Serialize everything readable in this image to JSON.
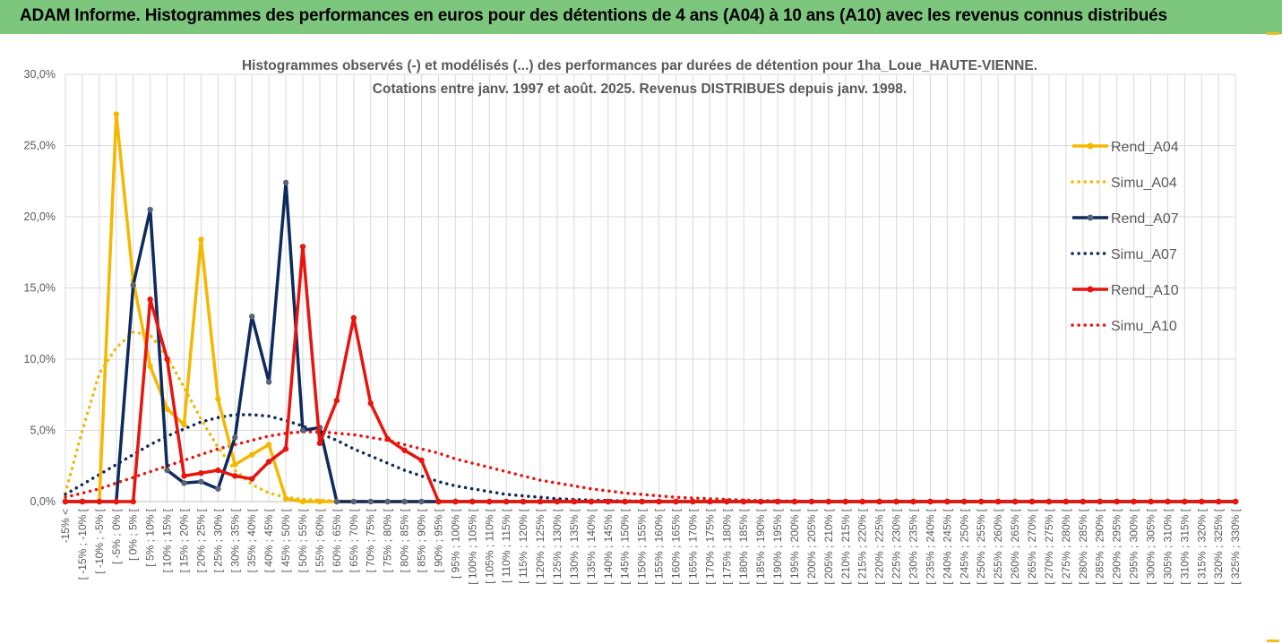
{
  "banner": {
    "title": "ADAM Informe. Histogrammes des performances en euros pour des détentions de 4 ans (A04) à 10 ans (A10) avec les revenus connus distribués"
  },
  "colors": {
    "banner": "#7dc67d",
    "a04": "#f5b800",
    "a07": "#0f2a5c",
    "a10": "#e8150f",
    "grid": "#d9d9d9"
  },
  "chart_data": {
    "type": "line",
    "title": "Histogrammes observés (-) et modélisés (...) des performances par durées de détention pour 1ha_Loue_HAUTE-VIENNE.",
    "subtitle": "Cotations entre janv. 1997 et août. 2025. Revenus DISTRIBUES depuis janv. 1998.",
    "ylim": [
      0,
      30
    ],
    "yticks": [
      "0,0%",
      "5,0%",
      "10,0%",
      "15,0%",
      "20,0%",
      "25,0%",
      "30,0%"
    ],
    "grid": true,
    "legend_position": "right",
    "categories": [
      "-15% <",
      "[ -15% ; -10% [",
      "[ -10% ; -5% [",
      "[ -5% ; 0% [",
      "[ 0% ; 5% [",
      "[ 5% ; 10% [",
      "[ 10% ; 15% [",
      "[ 15% ; 20% [",
      "[ 20% ; 25% [",
      "[ 25% ; 30% [",
      "[ 30% ; 35% [",
      "[ 35% ; 40% [",
      "[ 40% ; 45% [",
      "[ 45% ; 50% [",
      "[ 50% ; 55% [",
      "[ 55% ; 60% [",
      "[ 60% ; 65% [",
      "[ 65% ; 70% [",
      "[ 70% ; 75% [",
      "[ 75% ; 80% [",
      "[ 80% ; 85% [",
      "[ 85% ; 90% [",
      "[ 90% ; 95% [",
      "[ 95% ; 100% [",
      "[ 100% ; 105% [",
      "[ 105% ; 110% [",
      "[ 110% ; 115% [",
      "[ 115% ; 120% [",
      "[ 120% ; 125% [",
      "[ 125% ; 130% [",
      "[ 130% ; 135% [",
      "[ 135% ; 140% [",
      "[ 140% ; 145% [",
      "[ 145% ; 150% [",
      "[ 150% ; 155% [",
      "[ 155% ; 160% [",
      "[ 160% ; 165% [",
      "[ 165% ; 170% [",
      "[ 170% ; 175% [",
      "[ 175% ; 180% [",
      "[ 180% ; 185% [",
      "[ 185% ; 190% [",
      "[ 190% ; 195% [",
      "[ 195% ; 200% [",
      "[ 200% ; 205% [",
      "[ 205% ; 210% [",
      "[ 210% ; 215% [",
      "[ 215% ; 220% [",
      "[ 220% ; 225% [",
      "[ 225% ; 230% [",
      "[ 230% ; 235% [",
      "[ 235% ; 240% [",
      "[ 240% ; 245% [",
      "[ 245% ; 250% [",
      "[ 250% ; 255% [",
      "[ 255% ; 260% [",
      "[ 260% ; 265% [",
      "[ 265% ; 270% [",
      "[ 270% ; 275% [",
      "[ 275% ; 280% [",
      "[ 280% ; 285% [",
      "[ 285% ; 290% [",
      "[ 290% ; 295% [",
      "[ 295% ; 300% [",
      "[ 300% ; 305% [",
      "[ 305% ; 310% [",
      "[ 310% ; 315% [",
      "[ 315% ; 320% [",
      "[ 320% ; 325% [",
      "[ 325% ; 330% ["
    ],
    "series": [
      {
        "name": "Rend_A04",
        "style": "solid",
        "color": "#f5b800",
        "values": [
          0,
          0,
          0,
          27.2,
          15.5,
          9.5,
          6.5,
          5.4,
          18.4,
          7.2,
          2.6,
          3.3,
          4.0,
          0.2,
          0,
          0,
          0,
          0,
          0,
          0,
          0,
          0,
          0,
          0,
          0,
          0,
          0,
          0,
          0,
          0,
          0,
          0,
          0,
          0,
          0,
          0,
          0,
          0,
          0,
          0,
          0,
          0,
          0,
          0,
          0,
          0,
          0,
          0,
          0,
          0,
          0,
          0,
          0,
          0,
          0,
          0,
          0,
          0,
          0,
          0,
          0,
          0,
          0,
          0,
          0,
          0,
          0,
          0,
          0,
          0
        ]
      },
      {
        "name": "Simu_A04",
        "style": "dotted",
        "color": "#f5b800",
        "values": [
          0.6,
          5.0,
          9.0,
          10.8,
          11.9,
          11.7,
          10.2,
          8.0,
          5.8,
          3.8,
          2.2,
          1.2,
          0.6,
          0.3,
          0.15,
          0.1,
          0.05,
          0,
          0,
          0,
          0,
          0,
          0,
          0,
          0,
          0,
          0,
          0,
          0,
          0,
          0,
          0,
          0,
          0,
          0,
          0,
          0,
          0,
          0,
          0,
          0,
          0,
          0,
          0,
          0,
          0,
          0,
          0,
          0,
          0,
          0,
          0,
          0,
          0,
          0,
          0,
          0,
          0,
          0,
          0,
          0,
          0,
          0,
          0,
          0,
          0,
          0,
          0,
          0,
          0
        ]
      },
      {
        "name": "Rend_A07",
        "style": "solid",
        "color": "#0f2a5c",
        "values": [
          0,
          0,
          0,
          0,
          15.2,
          20.5,
          2.2,
          1.3,
          1.4,
          0.9,
          4.5,
          13.0,
          8.4,
          22.4,
          5.0,
          5.2,
          0,
          0,
          0,
          0,
          0,
          0,
          0,
          0,
          0,
          0,
          0,
          0,
          0,
          0,
          0,
          0,
          0,
          0,
          0,
          0,
          0,
          0,
          0,
          0,
          0,
          0,
          0,
          0,
          0,
          0,
          0,
          0,
          0,
          0,
          0,
          0,
          0,
          0,
          0,
          0,
          0,
          0,
          0,
          0,
          0,
          0,
          0,
          0,
          0,
          0,
          0,
          0,
          0,
          0
        ]
      },
      {
        "name": "Simu_A07",
        "style": "dotted",
        "color": "#0f2a5c",
        "values": [
          0.5,
          1.2,
          1.9,
          2.6,
          3.3,
          4.0,
          4.6,
          5.1,
          5.6,
          5.9,
          6.1,
          6.1,
          6.0,
          5.7,
          5.3,
          4.8,
          4.3,
          3.7,
          3.2,
          2.7,
          2.2,
          1.8,
          1.4,
          1.1,
          0.9,
          0.7,
          0.5,
          0.4,
          0.3,
          0.2,
          0.15,
          0.1,
          0.08,
          0.05,
          0.03,
          0.02,
          0,
          0,
          0,
          0,
          0,
          0,
          0,
          0,
          0,
          0,
          0,
          0,
          0,
          0,
          0,
          0,
          0,
          0,
          0,
          0,
          0,
          0,
          0,
          0,
          0,
          0,
          0,
          0,
          0,
          0,
          0,
          0,
          0,
          0
        ]
      },
      {
        "name": "Rend_A10",
        "style": "solid",
        "color": "#e8150f",
        "values": [
          0,
          0,
          0,
          0,
          0,
          14.2,
          10.0,
          1.8,
          2.0,
          2.2,
          1.8,
          1.6,
          2.8,
          3.7,
          17.9,
          4.1,
          7.1,
          12.9,
          6.9,
          4.4,
          3.6,
          2.9,
          0,
          0,
          0,
          0,
          0,
          0,
          0,
          0,
          0,
          0,
          0,
          0,
          0,
          0,
          0,
          0,
          0,
          0,
          0,
          0,
          0,
          0,
          0,
          0,
          0,
          0,
          0,
          0,
          0,
          0,
          0,
          0,
          0,
          0,
          0,
          0,
          0,
          0,
          0,
          0,
          0,
          0,
          0,
          0,
          0,
          0,
          0,
          0
        ]
      },
      {
        "name": "Simu_A10",
        "style": "dotted",
        "color": "#e8150f",
        "values": [
          0.3,
          0.6,
          0.9,
          1.3,
          1.7,
          2.1,
          2.5,
          2.9,
          3.3,
          3.7,
          4.0,
          4.3,
          4.6,
          4.8,
          4.9,
          4.9,
          4.8,
          4.7,
          4.5,
          4.3,
          4.0,
          3.7,
          3.4,
          3.0,
          2.7,
          2.4,
          2.1,
          1.8,
          1.5,
          1.3,
          1.1,
          0.9,
          0.75,
          0.6,
          0.5,
          0.4,
          0.3,
          0.25,
          0.2,
          0.15,
          0.1,
          0.08,
          0.05,
          0.03,
          0.02,
          0,
          0,
          0,
          0,
          0,
          0,
          0,
          0,
          0,
          0,
          0,
          0,
          0,
          0,
          0,
          0,
          0,
          0,
          0,
          0,
          0,
          0,
          0,
          0,
          0
        ]
      }
    ]
  }
}
